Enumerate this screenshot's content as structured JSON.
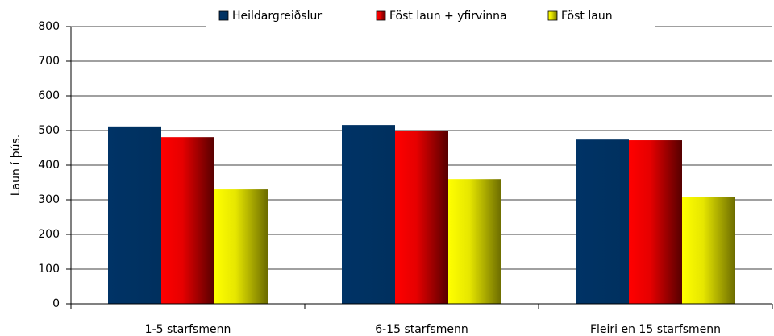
{
  "chart_data": {
    "type": "bar",
    "y_label": "Laun í þús.",
    "categories": [
      "1-5 starfsmenn",
      "6-15 starfsmenn",
      "Fleiri en 15 starfsmenn"
    ],
    "series": [
      {
        "name": "Heildargreiðslur",
        "color": "#003366",
        "values": [
          512,
          516,
          474
        ]
      },
      {
        "name": "Föst laun + yfirvinna",
        "color": "#ff0000",
        "values": [
          481,
          500,
          472
        ]
      },
      {
        "name": "Föst laun",
        "color": "#ffff00",
        "values": [
          330,
          360,
          308
        ]
      }
    ],
    "ylim": [
      0,
      800
    ],
    "yticks": [
      0,
      100,
      200,
      300,
      400,
      500,
      600,
      700,
      800
    ],
    "grid": true,
    "legend": "top"
  }
}
